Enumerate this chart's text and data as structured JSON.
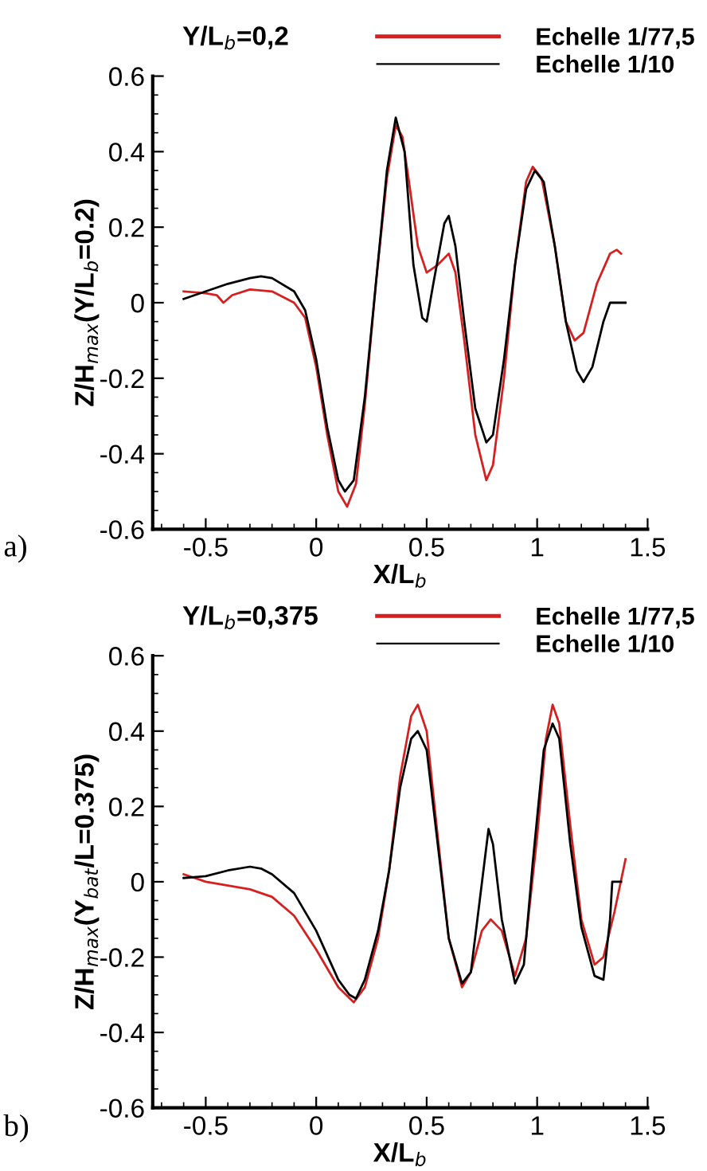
{
  "chart_data": [
    {
      "type": "line",
      "title": "Y/L$_{b}$=0,2",
      "xlabel": "X/L$_{b}$",
      "ylabel": "Z/H$_{max}$(Y/L$_{b}$=0.2)",
      "annotations": [
        "a)"
      ],
      "xlim": [
        -0.74,
        1.5
      ],
      "ylim": [
        -0.6,
        0.6
      ],
      "xticks": [
        {
          "value": -0.5,
          "label": "-0.5"
        },
        0,
        0.5,
        1,
        1.5
      ],
      "yticks": [
        {
          "value": -0.6,
          "label": "-0.6"
        },
        {
          "value": -0.4,
          "label": "-0.4"
        },
        {
          "value": -0.2,
          "label": "-0.2"
        },
        0,
        0.2,
        0.4,
        0.6
      ],
      "grid": false,
      "legend": "top right",
      "line_style": "solid",
      "marker": "none",
      "series": [
        {
          "name": "Echelle 1/77,5",
          "color": "#d62020",
          "x": [
            -0.6,
            -0.5,
            -0.45,
            -0.42,
            -0.38,
            -0.3,
            -0.2,
            -0.1,
            -0.05,
            0,
            0.05,
            0.1,
            0.14,
            0.18,
            0.22,
            0.27,
            0.32,
            0.36,
            0.39,
            0.42,
            0.46,
            0.5,
            0.55,
            0.6,
            0.63,
            0.67,
            0.72,
            0.77,
            0.8,
            0.85,
            0.9,
            0.95,
            0.98,
            1.02,
            1.08,
            1.13,
            1.17,
            1.21,
            1.27,
            1.33,
            1.36,
            1.38
          ],
          "values": [
            0.03,
            0.025,
            0.02,
            0.0,
            0.02,
            0.035,
            0.03,
            0.0,
            -0.04,
            -0.17,
            -0.35,
            -0.5,
            -0.54,
            -0.48,
            -0.27,
            0.05,
            0.33,
            0.47,
            0.44,
            0.32,
            0.15,
            0.08,
            0.1,
            0.13,
            0.08,
            -0.1,
            -0.35,
            -0.47,
            -0.43,
            -0.2,
            0.1,
            0.32,
            0.36,
            0.33,
            0.15,
            -0.05,
            -0.1,
            -0.08,
            0.05,
            0.13,
            0.14,
            0.13
          ]
        },
        {
          "name": "Echelle 1/10",
          "color": "#000000",
          "x": [
            -0.6,
            -0.5,
            -0.4,
            -0.3,
            -0.25,
            -0.2,
            -0.1,
            -0.05,
            0,
            0.05,
            0.1,
            0.13,
            0.17,
            0.22,
            0.27,
            0.32,
            0.36,
            0.4,
            0.44,
            0.48,
            0.5,
            0.53,
            0.58,
            0.6,
            0.63,
            0.67,
            0.72,
            0.77,
            0.8,
            0.85,
            0.9,
            0.95,
            0.99,
            1.03,
            1.08,
            1.13,
            1.18,
            1.21,
            1.25,
            1.3,
            1.33,
            1.4
          ],
          "values": [
            0.01,
            0.03,
            0.05,
            0.065,
            0.07,
            0.065,
            0.03,
            -0.02,
            -0.15,
            -0.33,
            -0.47,
            -0.5,
            -0.47,
            -0.25,
            0.05,
            0.35,
            0.49,
            0.4,
            0.1,
            -0.04,
            -0.05,
            0.05,
            0.21,
            0.23,
            0.15,
            -0.05,
            -0.28,
            -0.37,
            -0.35,
            -0.15,
            0.1,
            0.3,
            0.35,
            0.32,
            0.15,
            -0.05,
            -0.18,
            -0.21,
            -0.17,
            -0.05,
            0.0,
            0.0
          ]
        }
      ]
    },
    {
      "type": "line",
      "title": "Y/L$_{b}$=0,375",
      "xlabel": "X/L$_{b}$",
      "ylabel": "Z/H$_{max}$(Y$_{bat}$/L=0.375)",
      "annotations": [
        "b)"
      ],
      "xlim": [
        -0.74,
        1.5
      ],
      "ylim": [
        -0.6,
        0.6
      ],
      "xticks": [
        {
          "value": -0.5,
          "label": "-0.5"
        },
        0,
        0.5,
        1,
        1.5
      ],
      "yticks": [
        {
          "value": -0.6,
          "label": "-0.6"
        },
        {
          "value": -0.4,
          "label": "-0.4"
        },
        {
          "value": -0.2,
          "label": "-0.2"
        },
        0,
        0.2,
        0.4,
        0.6
      ],
      "grid": false,
      "legend": "top right",
      "line_style": "solid",
      "marker": "none",
      "series": [
        {
          "name": "Echelle 1/77,5",
          "color": "#d62020",
          "x": [
            -0.6,
            -0.5,
            -0.4,
            -0.3,
            -0.2,
            -0.1,
            0,
            0.1,
            0.17,
            0.22,
            0.28,
            0.33,
            0.38,
            0.43,
            0.46,
            0.5,
            0.55,
            0.6,
            0.66,
            0.7,
            0.75,
            0.79,
            0.84,
            0.9,
            0.95,
            1.0,
            1.04,
            1.07,
            1.1,
            1.15,
            1.2,
            1.26,
            1.3,
            1.35,
            1.4
          ],
          "values": [
            0.02,
            0.0,
            -0.01,
            -0.02,
            -0.04,
            -0.09,
            -0.18,
            -0.28,
            -0.32,
            -0.28,
            -0.15,
            0.03,
            0.28,
            0.44,
            0.47,
            0.4,
            0.12,
            -0.15,
            -0.28,
            -0.24,
            -0.13,
            -0.1,
            -0.13,
            -0.25,
            -0.15,
            0.12,
            0.38,
            0.47,
            0.42,
            0.15,
            -0.1,
            -0.22,
            -0.2,
            -0.08,
            0.06
          ]
        },
        {
          "name": "Echelle 1/10",
          "color": "#000000",
          "x": [
            -0.6,
            -0.5,
            -0.4,
            -0.3,
            -0.25,
            -0.2,
            -0.1,
            0,
            0.1,
            0.15,
            0.18,
            0.22,
            0.28,
            0.33,
            0.38,
            0.43,
            0.46,
            0.5,
            0.55,
            0.6,
            0.66,
            0.7,
            0.74,
            0.78,
            0.8,
            0.84,
            0.9,
            0.94,
            0.98,
            1.03,
            1.07,
            1.1,
            1.15,
            1.2,
            1.26,
            1.3,
            1.33,
            1.34,
            1.38
          ],
          "values": [
            0.01,
            0.015,
            0.03,
            0.04,
            0.035,
            0.02,
            -0.03,
            -0.13,
            -0.26,
            -0.3,
            -0.31,
            -0.26,
            -0.13,
            0.03,
            0.25,
            0.38,
            0.4,
            0.35,
            0.1,
            -0.15,
            -0.27,
            -0.24,
            -0.05,
            0.14,
            0.1,
            -0.1,
            -0.27,
            -0.22,
            0.05,
            0.35,
            0.42,
            0.38,
            0.1,
            -0.12,
            -0.25,
            -0.26,
            -0.1,
            0.0,
            0.0
          ]
        }
      ]
    }
  ]
}
